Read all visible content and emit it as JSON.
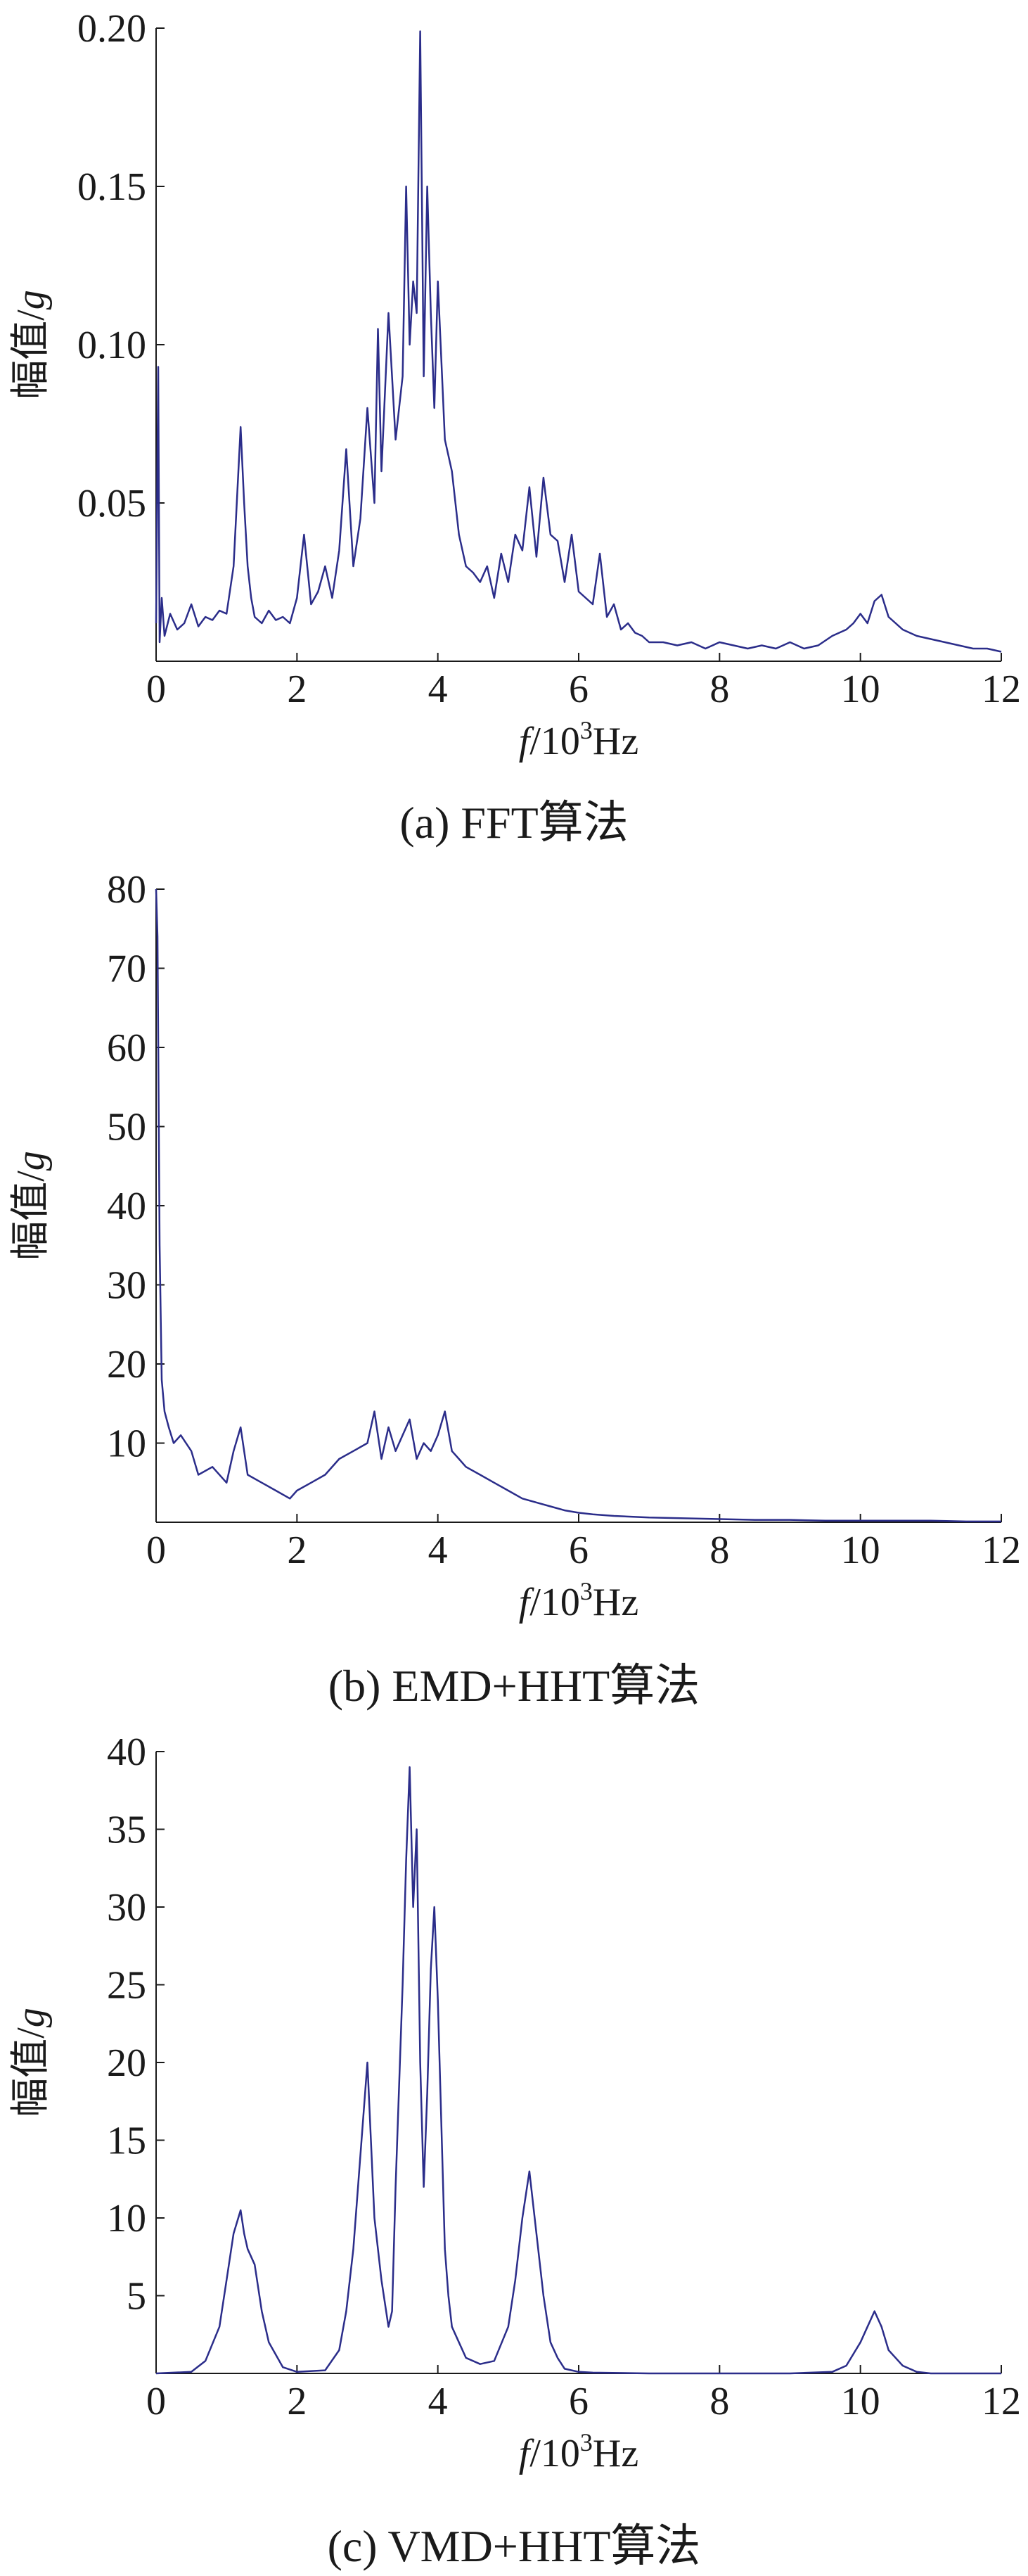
{
  "chart_data": [
    {
      "id": "a",
      "type": "line",
      "caption": "(a)  FFT算法",
      "ylabel_main": "幅值/",
      "ylabel_italic": "g",
      "xlabel_italic": "f",
      "xlabel_main": "/10",
      "xlabel_sup": "3",
      "xlabel_unit": "Hz",
      "xlim": [
        0,
        12
      ],
      "ylim": [
        0,
        0.2
      ],
      "xticks": [
        0,
        2,
        4,
        6,
        8,
        10,
        12
      ],
      "yticks": [
        0.05,
        0.1,
        0.15,
        0.2
      ],
      "ytick_labels": [
        "0.05",
        "0.10",
        "0.15",
        "0.20"
      ],
      "color": "#2b2d8a",
      "series": [
        {
          "x": [
            0.0,
            0.03,
            0.05,
            0.08,
            0.12,
            0.2,
            0.3,
            0.4,
            0.5,
            0.6,
            0.7,
            0.8,
            0.9,
            1.0,
            1.1,
            1.15,
            1.2,
            1.25,
            1.3,
            1.35,
            1.4,
            1.5,
            1.6,
            1.7,
            1.8,
            1.9,
            2.0,
            2.1,
            2.2,
            2.3,
            2.4,
            2.5,
            2.6,
            2.7,
            2.8,
            2.9,
            3.0,
            3.1,
            3.15,
            3.2,
            3.3,
            3.4,
            3.5,
            3.55,
            3.6,
            3.65,
            3.7,
            3.75,
            3.8,
            3.85,
            3.9,
            3.95,
            4.0,
            4.1,
            4.2,
            4.3,
            4.4,
            4.5,
            4.6,
            4.7,
            4.8,
            4.9,
            5.0,
            5.1,
            5.2,
            5.3,
            5.4,
            5.5,
            5.6,
            5.7,
            5.8,
            5.9,
            6.0,
            6.1,
            6.2,
            6.3,
            6.4,
            6.5,
            6.6,
            6.7,
            6.8,
            6.9,
            7.0,
            7.2,
            7.4,
            7.6,
            7.8,
            8.0,
            8.2,
            8.4,
            8.6,
            8.8,
            9.0,
            9.2,
            9.4,
            9.6,
            9.8,
            9.9,
            10.0,
            10.1,
            10.2,
            10.3,
            10.4,
            10.5,
            10.6,
            10.8,
            11.0,
            11.2,
            11.4,
            11.6,
            11.8,
            12.0
          ],
          "y": [
            0.012,
            0.093,
            0.006,
            0.02,
            0.008,
            0.015,
            0.01,
            0.012,
            0.018,
            0.011,
            0.014,
            0.013,
            0.016,
            0.015,
            0.03,
            0.052,
            0.074,
            0.05,
            0.03,
            0.02,
            0.014,
            0.012,
            0.016,
            0.013,
            0.014,
            0.012,
            0.02,
            0.04,
            0.018,
            0.022,
            0.03,
            0.02,
            0.035,
            0.067,
            0.03,
            0.045,
            0.08,
            0.05,
            0.105,
            0.06,
            0.11,
            0.07,
            0.09,
            0.15,
            0.1,
            0.12,
            0.11,
            0.199,
            0.09,
            0.15,
            0.11,
            0.08,
            0.12,
            0.07,
            0.06,
            0.04,
            0.03,
            0.028,
            0.025,
            0.03,
            0.02,
            0.034,
            0.025,
            0.04,
            0.035,
            0.055,
            0.033,
            0.058,
            0.04,
            0.038,
            0.025,
            0.04,
            0.022,
            0.02,
            0.018,
            0.034,
            0.014,
            0.018,
            0.01,
            0.012,
            0.009,
            0.008,
            0.006,
            0.006,
            0.005,
            0.006,
            0.004,
            0.006,
            0.005,
            0.004,
            0.005,
            0.004,
            0.006,
            0.004,
            0.005,
            0.008,
            0.01,
            0.012,
            0.015,
            0.012,
            0.019,
            0.021,
            0.014,
            0.012,
            0.01,
            0.008,
            0.007,
            0.006,
            0.005,
            0.004,
            0.004,
            0.003
          ]
        }
      ]
    },
    {
      "id": "b",
      "type": "line",
      "caption": "(b)  EMD+HHT算法",
      "ylabel_main": "幅值/",
      "ylabel_italic": "g",
      "xlabel_italic": "f",
      "xlabel_main": "/10",
      "xlabel_sup": "3",
      "xlabel_unit": "Hz",
      "xlim": [
        0,
        12
      ],
      "ylim": [
        0,
        80
      ],
      "xticks": [
        0,
        2,
        4,
        6,
        8,
        10,
        12
      ],
      "yticks": [
        10,
        20,
        30,
        40,
        50,
        60,
        70,
        80
      ],
      "ytick_labels": [
        "10",
        "20",
        "30",
        "40",
        "50",
        "60",
        "70",
        "80"
      ],
      "color": "#2b2d8a",
      "series": [
        {
          "x": [
            0.0,
            0.02,
            0.05,
            0.08,
            0.12,
            0.18,
            0.25,
            0.35,
            0.5,
            0.6,
            0.8,
            1.0,
            1.1,
            1.2,
            1.3,
            1.5,
            1.7,
            1.9,
            2.0,
            2.2,
            2.4,
            2.6,
            2.8,
            3.0,
            3.1,
            3.2,
            3.3,
            3.4,
            3.5,
            3.6,
            3.7,
            3.8,
            3.9,
            4.0,
            4.1,
            4.2,
            4.3,
            4.4,
            4.6,
            4.8,
            5.0,
            5.2,
            5.4,
            5.6,
            5.8,
            6.0,
            6.2,
            6.5,
            7.0,
            7.5,
            8.0,
            8.5,
            9.0,
            9.5,
            10.0,
            10.5,
            11.0,
            11.5,
            12.0
          ],
          "y": [
            80,
            74,
            35,
            18,
            14,
            12,
            10,
            11,
            9,
            6,
            7,
            5,
            9,
            12,
            6,
            5,
            4,
            3,
            4,
            5,
            6,
            8,
            9,
            10,
            14,
            8,
            12,
            9,
            11,
            13,
            8,
            10,
            9,
            11,
            14,
            9,
            8,
            7,
            6,
            5,
            4,
            3,
            2.5,
            2,
            1.5,
            1.2,
            1,
            0.8,
            0.6,
            0.5,
            0.4,
            0.3,
            0.3,
            0.2,
            0.2,
            0.2,
            0.2,
            0.1,
            0.1
          ]
        }
      ]
    },
    {
      "id": "c",
      "type": "line",
      "caption": "(c)  VMD+HHT算法",
      "ylabel_main": "幅值/",
      "ylabel_italic": "g",
      "xlabel_italic": "f",
      "xlabel_main": "/10",
      "xlabel_sup": "3",
      "xlabel_unit": "Hz",
      "xlim": [
        0,
        12
      ],
      "ylim": [
        0,
        40
      ],
      "xticks": [
        0,
        2,
        4,
        6,
        8,
        10,
        12
      ],
      "yticks": [
        5,
        10,
        15,
        20,
        25,
        30,
        35,
        40
      ],
      "ytick_labels": [
        "5",
        "10",
        "15",
        "20",
        "25",
        "30",
        "35",
        "40"
      ],
      "color": "#2b2d8a",
      "series": [
        {
          "x": [
            0.0,
            0.5,
            0.7,
            0.9,
            1.0,
            1.1,
            1.2,
            1.25,
            1.3,
            1.4,
            1.5,
            1.6,
            1.8,
            2.0,
            2.4,
            2.6,
            2.7,
            2.8,
            2.9,
            2.95,
            3.0,
            3.05,
            3.1,
            3.2,
            3.3,
            3.35,
            3.4,
            3.5,
            3.55,
            3.6,
            3.65,
            3.7,
            3.75,
            3.8,
            3.85,
            3.9,
            3.95,
            4.0,
            4.05,
            4.1,
            4.15,
            4.2,
            4.3,
            4.4,
            4.6,
            4.8,
            5.0,
            5.1,
            5.2,
            5.3,
            5.4,
            5.5,
            5.6,
            5.7,
            5.8,
            5.9,
            6.0,
            6.2,
            7.0,
            8.0,
            9.0,
            9.6,
            9.8,
            10.0,
            10.1,
            10.2,
            10.3,
            10.4,
            10.6,
            10.8,
            11.0,
            12.0
          ],
          "y": [
            0,
            0.1,
            0.8,
            3,
            6,
            9,
            10.5,
            9,
            8,
            7,
            4,
            2,
            0.4,
            0.1,
            0.2,
            1.5,
            4,
            8,
            14,
            17,
            20,
            15,
            10,
            6,
            3,
            4,
            12,
            25,
            33,
            39,
            30,
            35,
            20,
            12,
            18,
            26,
            30,
            24,
            16,
            8,
            5,
            3,
            2,
            1,
            0.6,
            0.8,
            3,
            6,
            10,
            13,
            9,
            5,
            2,
            1,
            0.3,
            0.2,
            0.1,
            0.05,
            0,
            0,
            0,
            0.1,
            0.5,
            2,
            3,
            4,
            3,
            1.5,
            0.5,
            0.1,
            0,
            0
          ]
        }
      ]
    }
  ]
}
